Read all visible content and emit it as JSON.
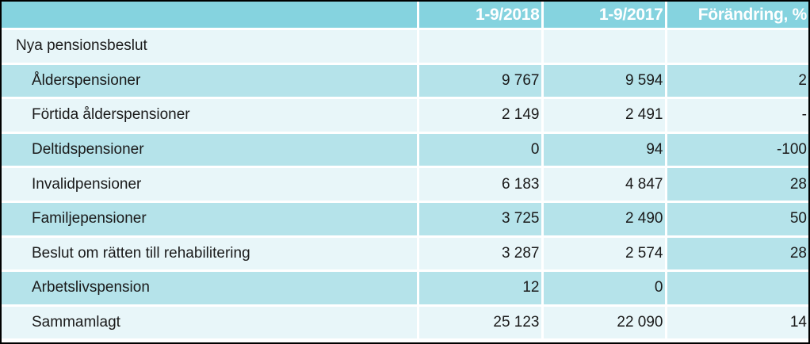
{
  "table": {
    "headers": [
      "",
      "1-9/2018",
      "1-9/2017",
      "Förändring, %"
    ],
    "section_title": "Nya pensionsbeslut",
    "rows": [
      {
        "label": "Ålderspensioner",
        "v2018": "9 767",
        "v2017": "9 594",
        "change": "2"
      },
      {
        "label": "Förtida ålderspensioner",
        "v2018": "2 149",
        "v2017": "2 491",
        "change": "-"
      },
      {
        "label": "Deltidspensioner",
        "v2018": "0",
        "v2017": "94",
        "change": "-100"
      },
      {
        "label": "Invalidpensioner",
        "v2018": "6 183",
        "v2017": "4 847",
        "change": "28"
      },
      {
        "label": "Familjepensioner",
        "v2018": "3 725",
        "v2017": "2 490",
        "change": "50"
      },
      {
        "label": "Beslut om rätten till rehabilitering",
        "v2018": "3 287",
        "v2017": "2 574",
        "change": "28"
      },
      {
        "label": "Arbetslivspension",
        "v2018": "12",
        "v2017": "0",
        "change": ""
      },
      {
        "label": "Sammamlagt",
        "v2018": "25 123",
        "v2017": "22 090",
        "change": "14"
      }
    ]
  },
  "colors": {
    "header_bg": "#85d3df",
    "row_light": "#e8f6f9",
    "row_dark": "#b5e3ea",
    "header_text": "#ffffff"
  }
}
